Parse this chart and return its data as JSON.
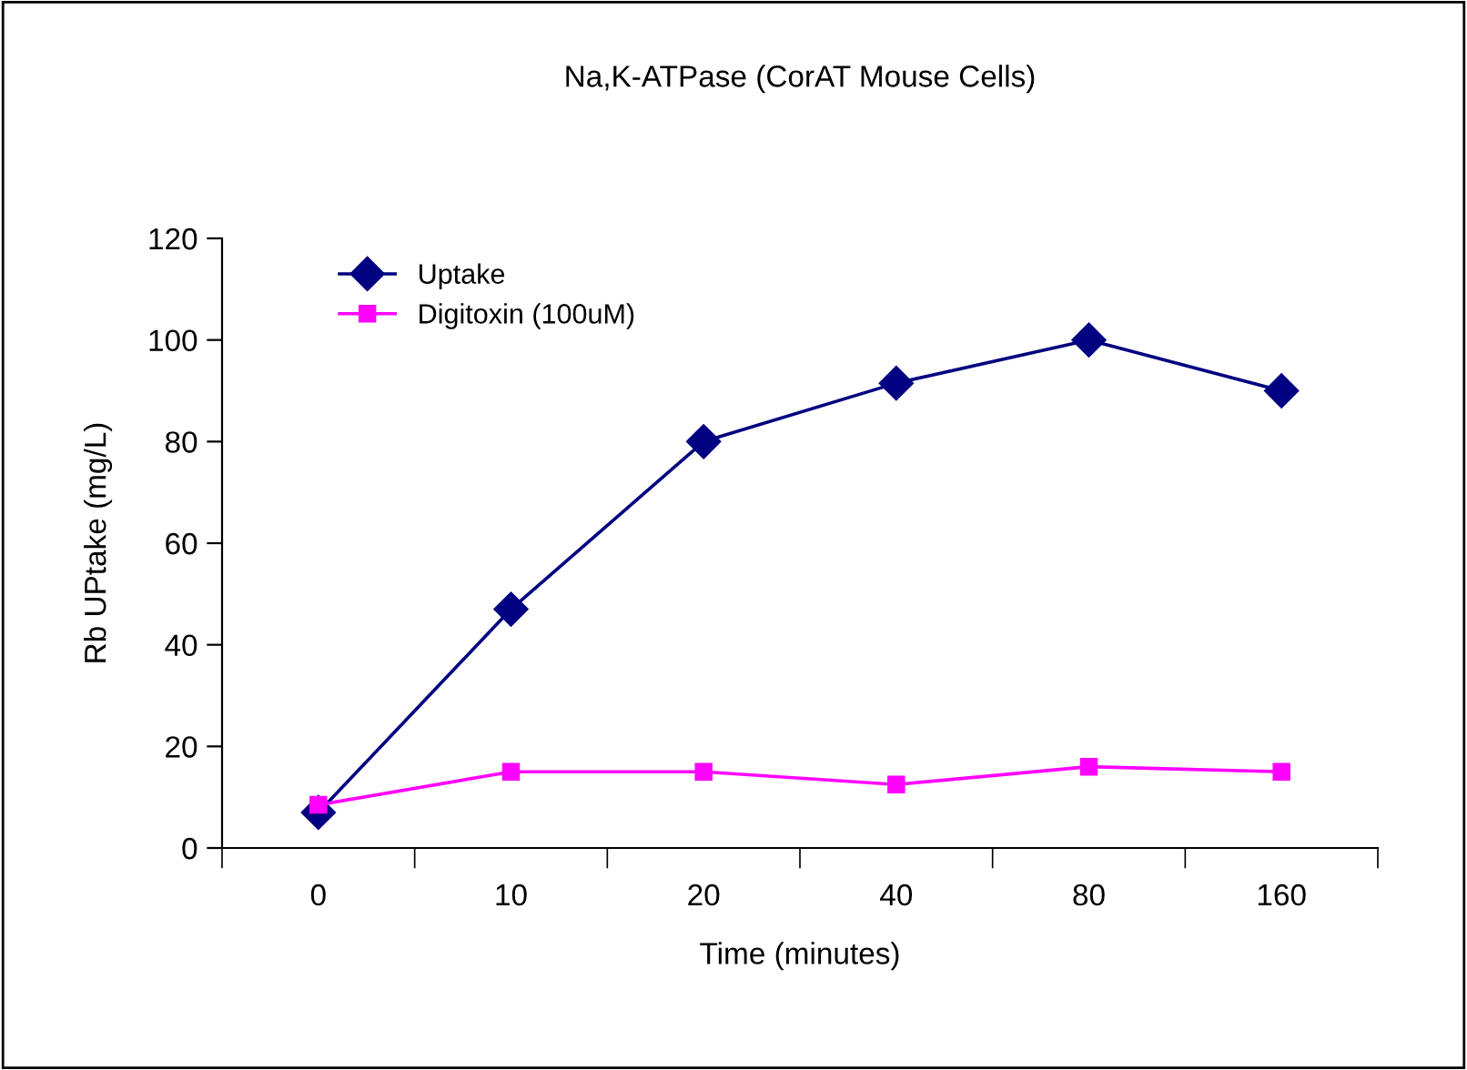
{
  "chart_data": {
    "type": "line",
    "title": "Na,K-ATPase (CorAT Mouse Cells)",
    "xlabel": "Time (minutes)",
    "ylabel": "Rb UPtake (mg/L)",
    "categories": [
      "0",
      "10",
      "20",
      "40",
      "80",
      "160"
    ],
    "series": [
      {
        "name": "Uptake",
        "color": "#000080",
        "marker": "diamond",
        "values": [
          7,
          47,
          80,
          91.5,
          100,
          90
        ]
      },
      {
        "name": "Digitoxin (100uM)",
        "color": "#ff00ff",
        "marker": "square",
        "values": [
          8.5,
          15,
          15,
          12.5,
          16,
          15
        ]
      }
    ],
    "ylim": [
      0,
      120
    ],
    "yticks": [
      0,
      20,
      40,
      60,
      80,
      100,
      120
    ],
    "grid": false,
    "legend": "top left"
  }
}
